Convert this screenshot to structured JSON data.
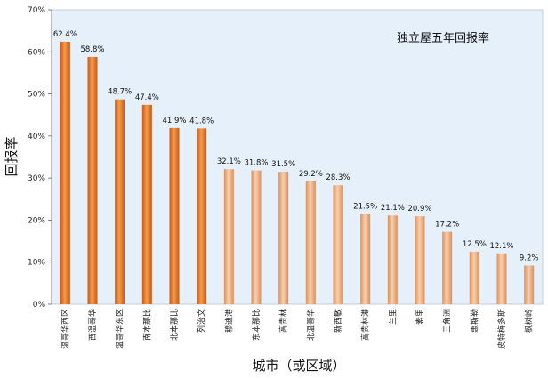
{
  "chart_data": {
    "type": "bar",
    "title": "独立屋五年回报率",
    "xlabel": "城市（或区域）",
    "ylabel": "回报率",
    "ylim": [
      0,
      70
    ],
    "y_ticks": [
      "0%",
      "10%",
      "20%",
      "30%",
      "40%",
      "50%",
      "60%",
      "70%"
    ],
    "grid": false,
    "categories": [
      "温哥华西区",
      "西温哥华",
      "温哥华东区",
      "南本那比",
      "北本那比",
      "列治文",
      "穆迪港",
      "东本那比",
      "高贵林",
      "北温哥华",
      "新西敏",
      "高贵林港",
      "兰里",
      "素里",
      "三角洲",
      "惠斯勒",
      "皮特梅多斯",
      "枫树岭"
    ],
    "values": [
      62.4,
      58.8,
      48.7,
      47.4,
      41.9,
      41.8,
      32.1,
      31.8,
      31.5,
      29.2,
      28.3,
      21.5,
      21.1,
      20.9,
      17.2,
      12.5,
      12.1,
      9.2
    ],
    "data_labels": [
      "62.4%",
      "58.8%",
      "48.7%",
      "47.4%",
      "41.9%",
      "41.8%",
      "32.1%",
      "31.8%",
      "31.5%",
      "29.2%",
      "28.3%",
      "21.5%",
      "21.1%",
      "20.9%",
      "17.2%",
      "12.5%",
      "12.1%",
      "9.2%"
    ],
    "colors": {
      "plot_background": "#e6f0fb",
      "bar_group_1": "#ec7b2c",
      "bar_group_2": "#f2ad7f"
    },
    "bar_group_1_count": 6
  }
}
